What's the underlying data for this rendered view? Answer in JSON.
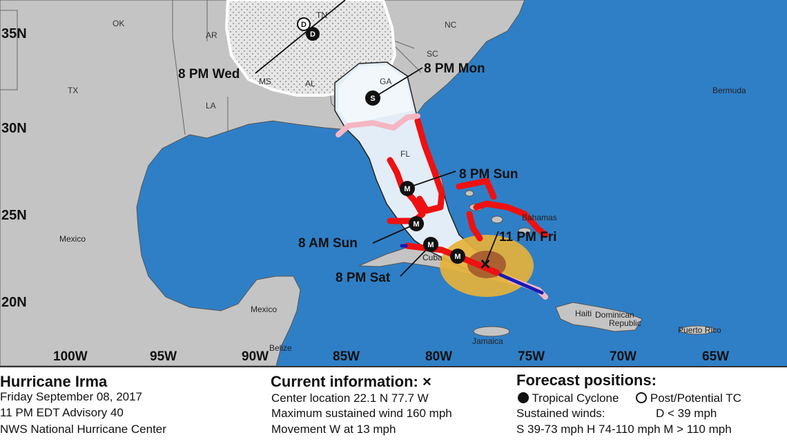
{
  "map": {
    "latitude_labels": [
      "35N",
      "30N",
      "25N",
      "20N"
    ],
    "longitude_labels": [
      "100W",
      "95W",
      "90W",
      "85W",
      "80W",
      "75W",
      "70W",
      "65W"
    ],
    "state_labels": [
      "OK",
      "TN",
      "NC",
      "AR",
      "SC",
      "TX",
      "MS",
      "AL",
      "GA",
      "LA",
      "FL"
    ],
    "places": [
      "Bermuda",
      "Mexico",
      "Bahamas",
      "Cuba",
      "Mexico",
      "Belize",
      "Haiti",
      "Dominican",
      "Republic",
      "Jamaica",
      "Puerto Rico"
    ],
    "forecast_points": [
      {
        "time": "11 PM Fri",
        "symbol": "×"
      },
      {
        "time": "8 PM Sat",
        "symbol": "M"
      },
      {
        "time": "8 AM Sun",
        "symbol": "M"
      },
      {
        "time": "8 PM Sun",
        "symbol": "M"
      },
      {
        "time": "8 PM Mon",
        "symbol": "S"
      },
      {
        "time": "8 PM Wed",
        "symbol": "D"
      }
    ],
    "extra_symbols": [
      "M",
      "D"
    ],
    "colors": {
      "ocean": "#2f7fc6",
      "land": "#c4c4c4",
      "cone_near": "#e3edf7",
      "cone_far_stipple": "#e8e8e8",
      "hurricane_warning": "#ee1111",
      "tropical_storm_warning": "#f4b6c2",
      "hurricane_watch": "#ffc0cb",
      "ts_watch": "#1a1ab8",
      "tropical_storm_wind": "#e6b13a",
      "hurricane_wind": "#a0522d"
    }
  },
  "legend": {
    "storm_title": "Hurricane Irma",
    "date": "Friday September 08, 2017",
    "advisory": "11 PM EDT Advisory 40",
    "center": "NWS National Hurricane Center",
    "current_title": "Current information:",
    "current_symbol": "×",
    "location": "Center location 22.1 N 77.7 W",
    "max_wind": "Maximum sustained wind 160 mph",
    "movement": "Movement W at 13 mph",
    "forecast_title": "Forecast positions:",
    "tc_label": "Tropical Cyclone",
    "post_tc_label": "Post/Potential TC",
    "sustained_winds": "Sustained winds:",
    "d_scale": "D < 39 mph",
    "scale": "S 39-73 mph  H 74-110 mph  M > 110 mph"
  }
}
